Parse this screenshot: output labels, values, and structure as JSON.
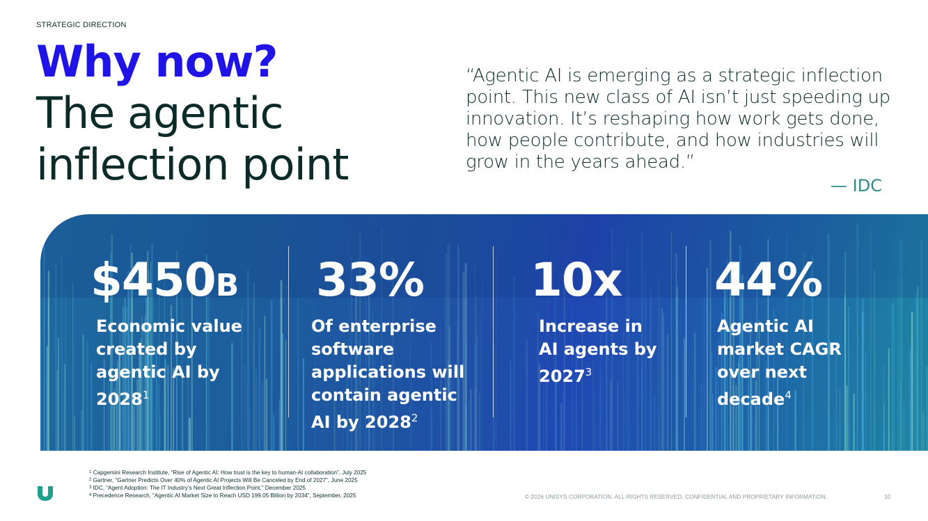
{
  "eyebrow": "STRATEGIC DIRECTION",
  "title": {
    "line1": "Why now?",
    "line2": "The agentic",
    "line3": "inflection point"
  },
  "quote": {
    "text": "“Agentic AI is emerging as a strategic inflection point. This new class of AI isn’t just speeding up innovation. It’s reshaping how work gets done, how people contribute, and how industries will grow in the years ahead.”",
    "source": "— IDC"
  },
  "stats": [
    {
      "value": "$450",
      "suffix": "B",
      "lines": [
        "Economic value",
        "created by",
        "agentic AI by",
        "2028"
      ],
      "footnote": "1"
    },
    {
      "value": "33%",
      "suffix": "",
      "lines": [
        "Of enterprise",
        "software",
        "applications will",
        "contain agentic",
        "AI by 2028"
      ],
      "footnote": "2"
    },
    {
      "value": "10x",
      "suffix": "",
      "lines": [
        "Increase in",
        "AI agents by",
        "2027"
      ],
      "footnote": "3"
    },
    {
      "value": "44%",
      "suffix": "",
      "lines": [
        "Agentic AI",
        "market CAGR",
        "over next",
        "decade"
      ],
      "footnote": "4"
    }
  ],
  "footnotes": [
    {
      "n": "1",
      "text": "Capgemini Research Institute, “Rise of Agentic AI: How trust is the key to human-AI collaboration”, July 2025"
    },
    {
      "n": "2",
      "text": "Gartner, “Gartner Predicts Over 40% of Agentic AI Projects Will Be Canceled by End of 2027”, June 2025"
    },
    {
      "n": "3",
      "text": "IDC, “Agent Adoption: The IT Industry’s Next Great Inflection Point,” December 2025"
    },
    {
      "n": "4",
      "text": "Precedence Research, “Agentic AI Market Size to Reach USD 199.05 Billion by 2034”, September, 2025"
    }
  ],
  "copyright": "© 2026 UNISYS CORPORATION. ALL RIGHTS RESERVED. CONFIDENTIAL AND PROPRIETARY INFORMATION.",
  "page_number": "10",
  "colors": {
    "title_accent": "#1f13e6",
    "heading": "#0b2b29",
    "quote_source": "#2f8d86",
    "band_blue": "#1f4fa6",
    "logo": "#1fa08e"
  },
  "logo_icon": "unisys-logo-icon"
}
